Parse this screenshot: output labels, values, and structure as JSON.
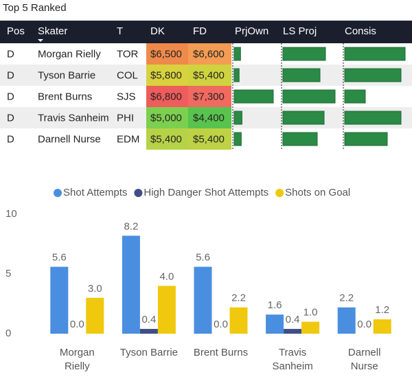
{
  "title": "Top 5 Ranked",
  "table": {
    "columns": [
      "Pos",
      "Skater",
      "T",
      "DK",
      "FD",
      "PrjOwn",
      "LS Proj",
      "Consis"
    ],
    "bar_color": "#2b8a46",
    "rows": [
      {
        "cells": [
          "D",
          "Morgan Rielly",
          "TOR",
          "$6,500",
          "$6,600"
        ],
        "colors": [
          "#f08a4b",
          "#f39c53"
        ],
        "bars": [
          9,
          62,
          88
        ]
      },
      {
        "cells": [
          "D",
          "Tyson Barrie",
          "COL",
          "$5,800",
          "$5,400"
        ],
        "colors": [
          "#d8d23f",
          "#cfd33f"
        ],
        "bars": [
          7,
          54,
          82
        ]
      },
      {
        "cells": [
          "D",
          "Brent Burns",
          "SJS",
          "$6,800",
          "$7,300"
        ],
        "colors": [
          "#ee5c5b",
          "#f16a5f"
        ],
        "bars": [
          55,
          76,
          30
        ]
      },
      {
        "cells": [
          "D",
          "Travis Sanheim",
          "PHI",
          "$5,000",
          "$4,400"
        ],
        "colors": [
          "#7ccf4f",
          "#58c34e"
        ],
        "bars": [
          11,
          60,
          82
        ]
      },
      {
        "cells": [
          "D",
          "Darnell Nurse",
          "EDM",
          "$5,400",
          "$5,400"
        ],
        "colors": [
          "#b6d247",
          "#bdd245"
        ],
        "bars": [
          10,
          50,
          62
        ]
      }
    ]
  },
  "chart_data": {
    "type": "bar",
    "categories": [
      "Morgan Rielly",
      "Tyson Barrie",
      "Brent Burns",
      "Travis Sanheim",
      "Darnell Nurse"
    ],
    "series": [
      {
        "name": "Shot Attempts",
        "color": "#4a8ee0",
        "values": [
          5.6,
          8.2,
          5.6,
          1.6,
          2.2
        ],
        "value_labels": [
          "5.6",
          "8.2",
          "5.6",
          "1.6",
          "2.2"
        ]
      },
      {
        "name": "High Danger Shot Attempts",
        "color": "#3f4e86",
        "values": [
          0,
          0.4,
          0,
          0.4,
          0
        ],
        "value_labels": [
          "0.0",
          "0.4",
          "0.0",
          "0.4",
          "0.0"
        ]
      },
      {
        "name": "Shots on Goal",
        "color": "#f0c80e",
        "values": [
          3,
          4,
          2.2,
          1,
          1.2
        ],
        "value_labels": [
          "3.0",
          "4.0",
          "2.2",
          "1.0",
          "1.2"
        ]
      }
    ],
    "ylim": [
      0,
      10
    ],
    "yticks": [
      0,
      5,
      10
    ],
    "grid": false,
    "legend": "top"
  }
}
